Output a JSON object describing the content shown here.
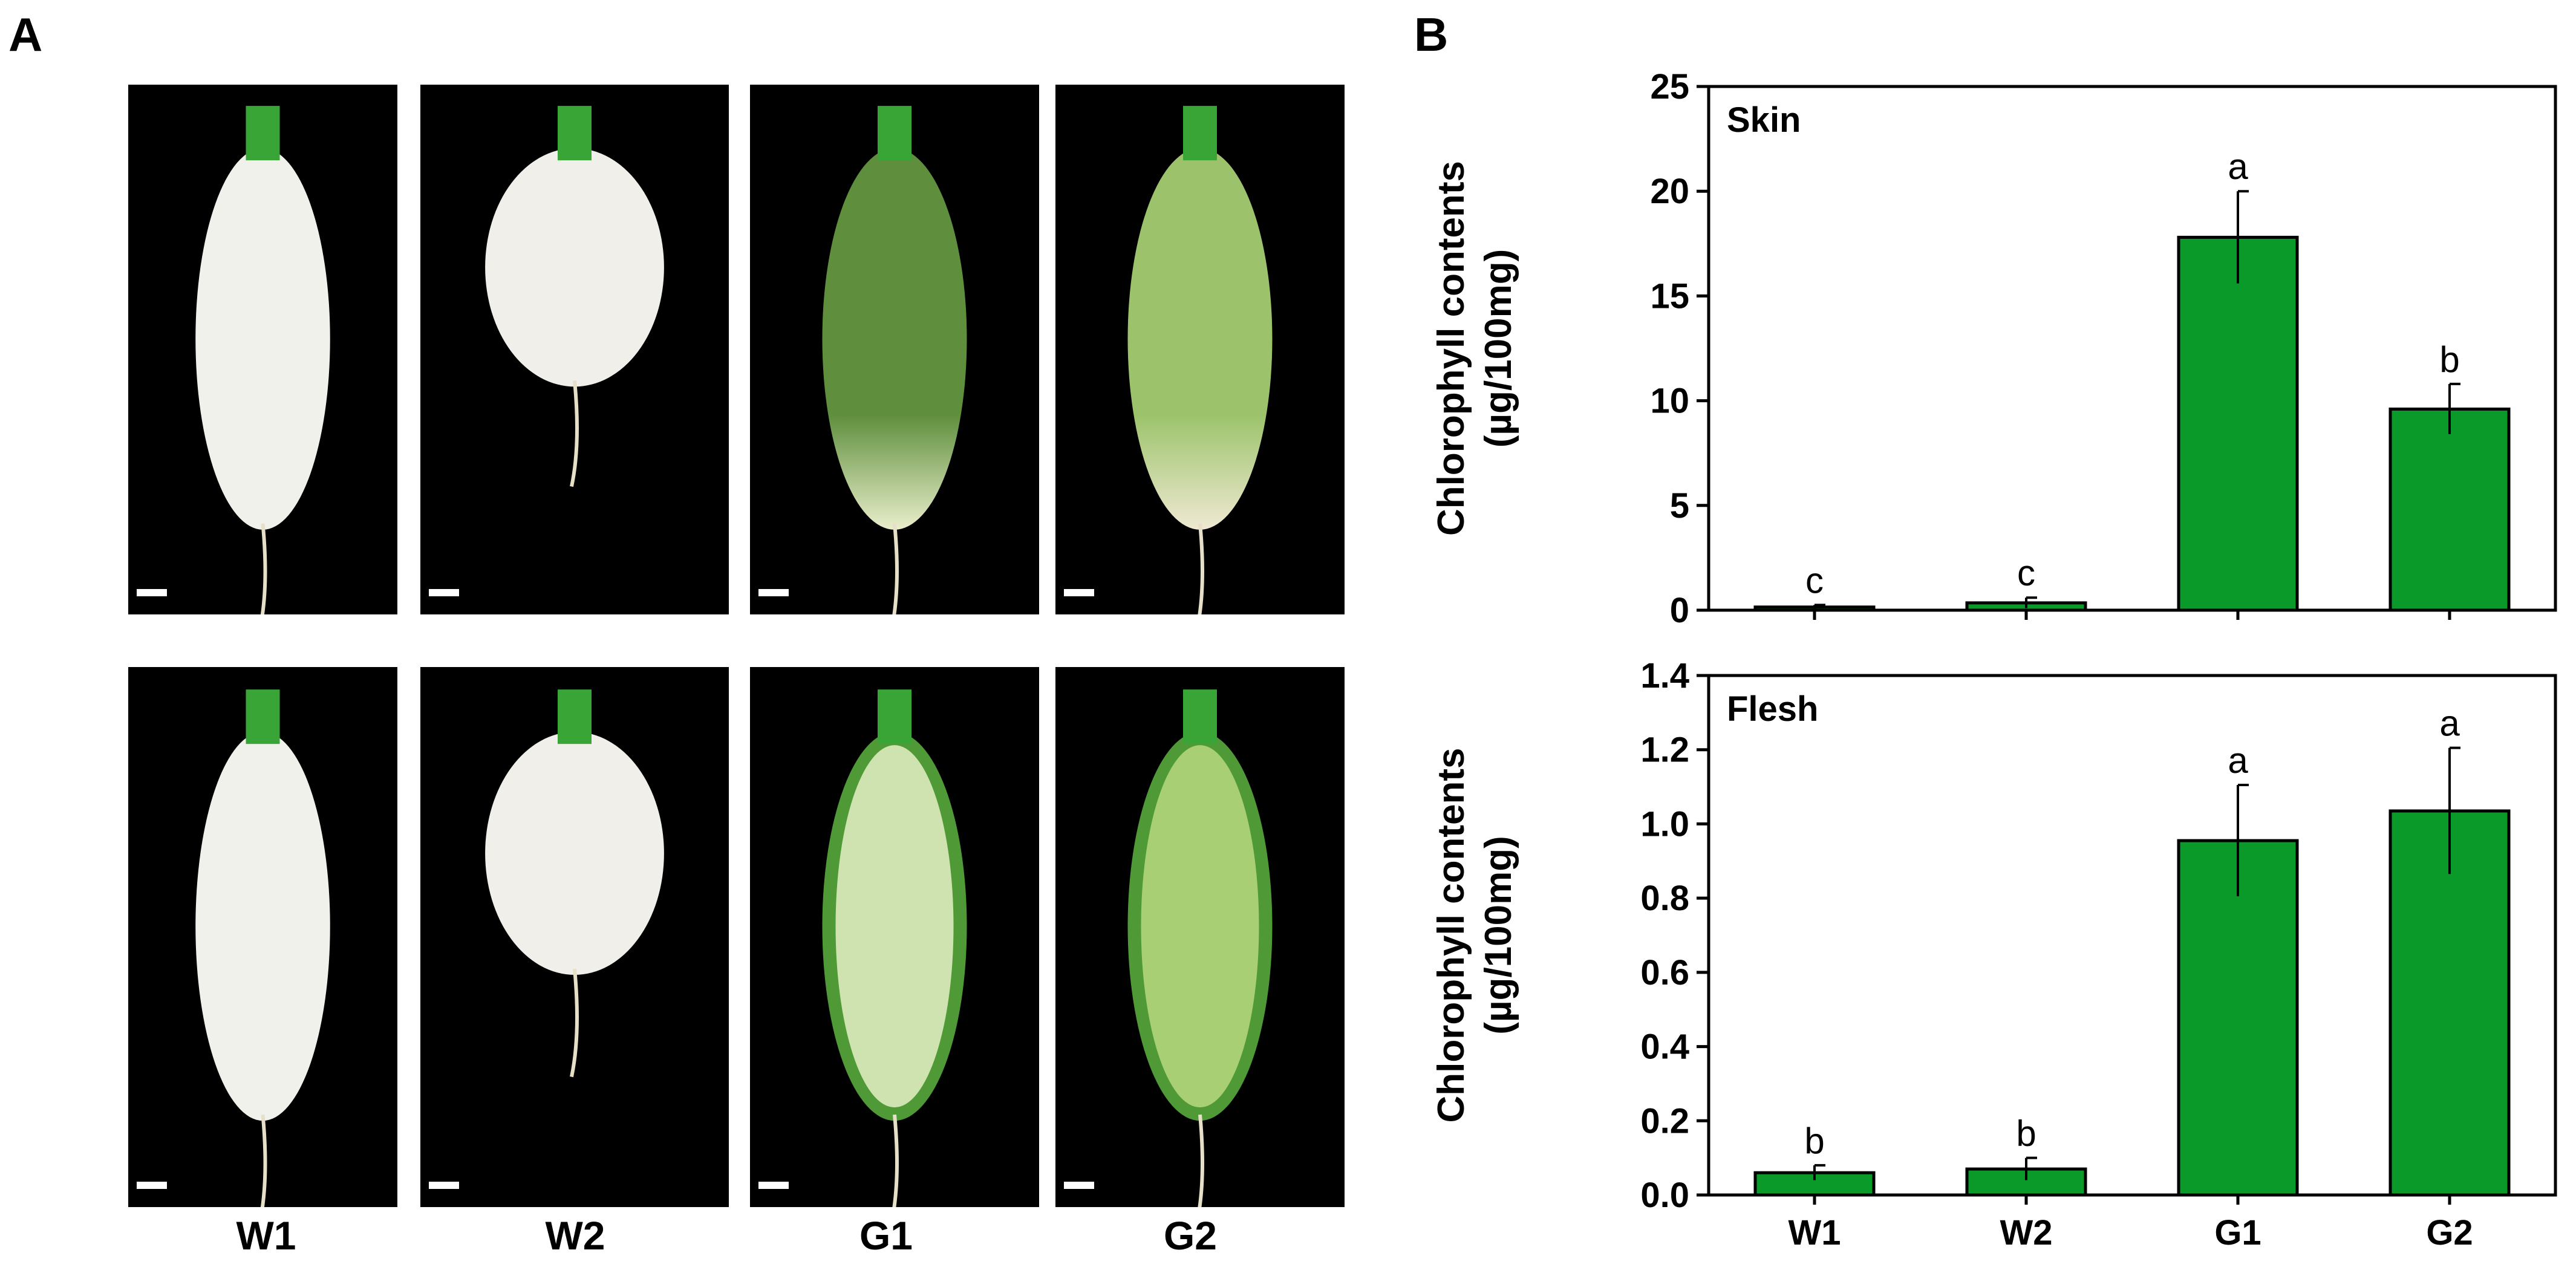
{
  "panel_labels": {
    "a": "A",
    "b": "B"
  },
  "photo_columns": [
    "W1",
    "W2",
    "G1",
    "G2"
  ],
  "colors": {
    "bar_fill": "#0a9a2a",
    "bar_stroke": "#000000",
    "photo_bg": "#000000"
  },
  "chart_data": [
    {
      "type": "bar",
      "panel": "Skin",
      "categories": [
        "W1",
        "W2",
        "G1",
        "G2"
      ],
      "values": [
        0.15,
        0.35,
        17.8,
        9.6
      ],
      "errors": [
        0.1,
        0.25,
        2.2,
        1.2
      ],
      "significance": [
        "c",
        "c",
        "a",
        "b"
      ],
      "ylabel_lines": [
        "Chlorophyll contents",
        "(µg/100mg)"
      ],
      "ylim": [
        0,
        25
      ],
      "yticks": [
        0,
        5,
        10,
        15,
        20,
        25
      ],
      "ytick_labels": [
        "0",
        "5",
        "10",
        "15",
        "20",
        "25"
      ],
      "show_xticklabels": false
    },
    {
      "type": "bar",
      "panel": "Flesh",
      "categories": [
        "W1",
        "W2",
        "G1",
        "G2"
      ],
      "values": [
        0.06,
        0.07,
        0.955,
        1.035
      ],
      "errors": [
        0.02,
        0.03,
        0.15,
        0.17
      ],
      "significance": [
        "b",
        "b",
        "a",
        "a"
      ],
      "ylabel_lines": [
        "Chlorophyll contents",
        "(µg/100mg)"
      ],
      "ylim": [
        0,
        1.4
      ],
      "yticks": [
        0,
        0.2,
        0.4,
        0.6,
        0.8,
        1.0,
        1.2,
        1.4
      ],
      "ytick_labels": [
        "0.0",
        "0.2",
        "0.4",
        "0.6",
        "0.8",
        "1.0",
        "1.2",
        "1.4"
      ],
      "show_xticklabels": true
    }
  ]
}
